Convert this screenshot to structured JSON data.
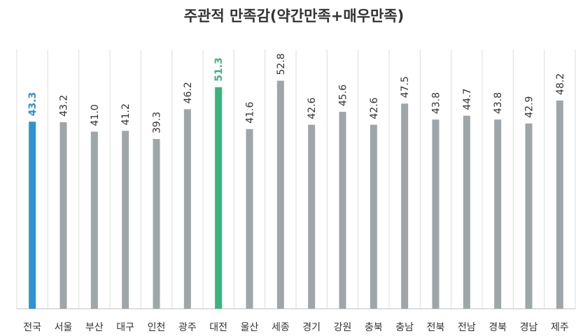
{
  "chart_data": {
    "type": "bar",
    "title": "주관적 만족감(약간만족+매우만족)",
    "categories": [
      "전국",
      "서울",
      "부산",
      "대구",
      "인천",
      "광주",
      "대전",
      "울산",
      "세종",
      "경기",
      "강원",
      "충북",
      "충남",
      "전북",
      "전남",
      "경북",
      "경남",
      "제주"
    ],
    "values": [
      43.3,
      43.2,
      41.0,
      41.2,
      39.3,
      46.2,
      51.3,
      41.6,
      52.8,
      42.6,
      45.6,
      42.6,
      47.5,
      43.8,
      44.7,
      43.8,
      42.9,
      48.2
    ],
    "value_labels": [
      "43.3",
      "43.2",
      "41.0",
      "41.2",
      "39.3",
      "46.2",
      "51.3",
      "41.6",
      "52.8",
      "42.6",
      "45.6",
      "42.6",
      "47.5",
      "43.8",
      "44.7",
      "43.8",
      "42.9",
      "48.2"
    ],
    "color": "#9ea6a9",
    "colors": [
      "#2f93d1",
      "#9ea6a9",
      "#9ea6a9",
      "#9ea6a9",
      "#9ea6a9",
      "#9ea6a9",
      "#3db27a",
      "#9ea6a9",
      "#9ea6a9",
      "#9ea6a9",
      "#9ea6a9",
      "#9ea6a9",
      "#9ea6a9",
      "#9ea6a9",
      "#9ea6a9",
      "#9ea6a9",
      "#9ea6a9",
      "#9ea6a9"
    ],
    "ylim": [
      0,
      60
    ],
    "grid": true
  }
}
